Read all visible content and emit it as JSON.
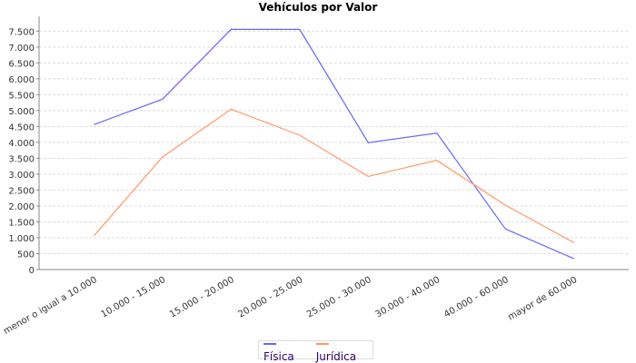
{
  "chart_data": {
    "type": "line",
    "title": "Vehículos por Valor",
    "xlabel": "",
    "ylabel": "",
    "categories": [
      "menor o igual a 10.000",
      "10.000 - 15.000",
      "15.000 - 20.000",
      "20.000 - 25.000",
      "25.000 - 30.000",
      "30.000 - 40.000",
      "40.000 - 60.000",
      "mayor de 60.000"
    ],
    "ylim": [
      0,
      7900
    ],
    "yticks": [
      0,
      500,
      1000,
      1500,
      2000,
      2500,
      3000,
      3500,
      4000,
      4500,
      5000,
      5500,
      6000,
      6500,
      7000,
      7500
    ],
    "ytick_labels": [
      "0",
      "500",
      "1.000",
      "1.500",
      "2.000",
      "2.500",
      "3.000",
      "3.500",
      "4.000",
      "4.500",
      "5.000",
      "5.500",
      "6.000",
      "6.500",
      "7.000",
      "7.500"
    ],
    "grid": true,
    "legend_position": "bottom",
    "series": [
      {
        "name": "Física",
        "color": "#6666ff",
        "values": [
          4560,
          5360,
          7555,
          7555,
          3990,
          4290,
          1275,
          340
        ]
      },
      {
        "name": "Jurídica",
        "color": "#ff9966",
        "values": [
          1055,
          3540,
          5045,
          4225,
          2930,
          3435,
          2025,
          845
        ]
      }
    ]
  }
}
